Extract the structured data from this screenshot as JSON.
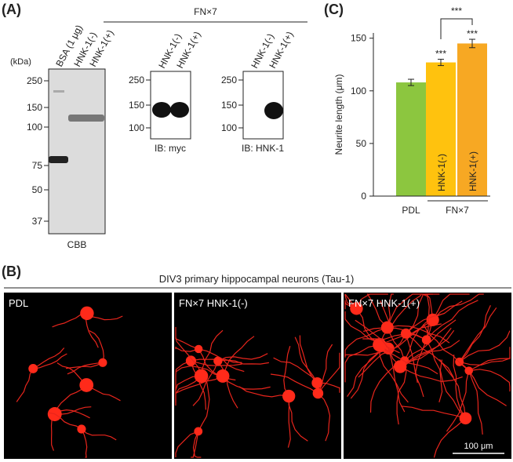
{
  "panel_a": {
    "label": "(A)",
    "header": "FN×7",
    "kda": "(kDa)",
    "gel_lanes": [
      "BSA (1 μg)",
      "HNK-1(-)",
      "HNK-1(+)"
    ],
    "gel_ladder": [
      "250",
      "150",
      "100",
      "75",
      "50",
      "37"
    ],
    "gel_caption": "CBB",
    "myc_lanes": [
      "HNK-1(-)",
      "HNK-1(+)"
    ],
    "myc_ladder": [
      "250",
      "150",
      "100"
    ],
    "myc_caption": "IB: myc",
    "hnk_lanes": [
      "HNK-1(-)",
      "HNK-1(+)"
    ],
    "hnk_ladder": [
      "250",
      "150",
      "100"
    ],
    "hnk_caption": "IB: HNK-1"
  },
  "chart_data": {
    "type": "bar",
    "panel_label": "(C)",
    "y_label": "Neurite length (μm)",
    "categories": [
      "PDL",
      "HNK-1(-)",
      "HNK-1(+)"
    ],
    "values": [
      108,
      127,
      145
    ],
    "errors": [
      3,
      3,
      4
    ],
    "colors": [
      "#8cc63f",
      "#ffc20e",
      "#f7a823"
    ],
    "ylim": [
      0,
      155
    ],
    "yticks": [
      0,
      50,
      100,
      150
    ],
    "group_label": "FN×7",
    "annotations": [
      "***",
      "***",
      "***"
    ]
  },
  "panel_b": {
    "label": "(B)",
    "title": "DIV3 primary hippocampal neurons (Tau-1)",
    "images": [
      "PDL",
      "FN×7 HNK-1(-)",
      "FN×7 HNK-1(+)"
    ],
    "scale_bar": "100 μm"
  }
}
